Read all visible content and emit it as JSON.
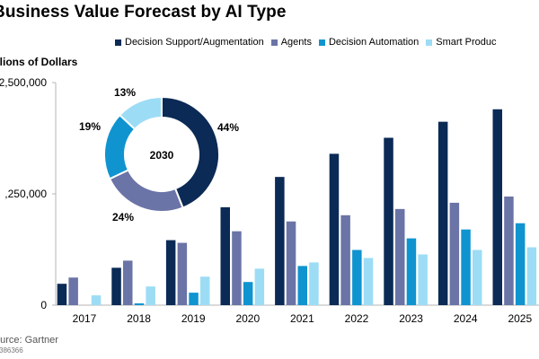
{
  "chart_data": [
    {
      "type": "bar",
      "title": "Business Value Forecast by AI Type",
      "ylabel": "illions of Dollars",
      "xlabel": "",
      "ylim": [
        0,
        2500000
      ],
      "y_ticks": [
        0,
        1250000,
        2500000
      ],
      "y_tick_labels": [
        "0",
        ",250,000",
        "2,500,000"
      ],
      "legend_position": "top",
      "categories": [
        "2017",
        "2018",
        "2019",
        "2020",
        "2021",
        "2022",
        "2023",
        "2024",
        "2025"
      ],
      "series": [
        {
          "name": "Decision Support/Augmentation",
          "color": "#0b2a55",
          "values": [
            240000,
            420000,
            730000,
            1100000,
            1440000,
            1700000,
            1880000,
            2060000,
            2200000
          ]
        },
        {
          "name": "Agents",
          "color": "#6b74a6",
          "values": [
            310000,
            500000,
            700000,
            830000,
            940000,
            1010000,
            1080000,
            1150000,
            1220000
          ]
        },
        {
          "name": "Decision Automation",
          "color": "#0f94d0",
          "values": [
            0,
            20000,
            140000,
            260000,
            440000,
            620000,
            750000,
            850000,
            920000
          ]
        },
        {
          "name": "Smart Produc",
          "color": "#9ddcf5",
          "values": [
            110000,
            210000,
            320000,
            410000,
            480000,
            530000,
            570000,
            620000,
            650000
          ]
        }
      ],
      "source": "ource: Gartner",
      "doc_id": "386366"
    },
    {
      "type": "pie",
      "title": "",
      "center_label": "2030",
      "slices": [
        {
          "label": "44%",
          "value": 44,
          "color": "#0b2a55"
        },
        {
          "label": "24%",
          "value": 24,
          "color": "#6b74a6"
        },
        {
          "label": "19%",
          "value": 19,
          "color": "#0f94d0"
        },
        {
          "label": "13%",
          "value": 13,
          "color": "#9ddcf5"
        }
      ]
    }
  ]
}
